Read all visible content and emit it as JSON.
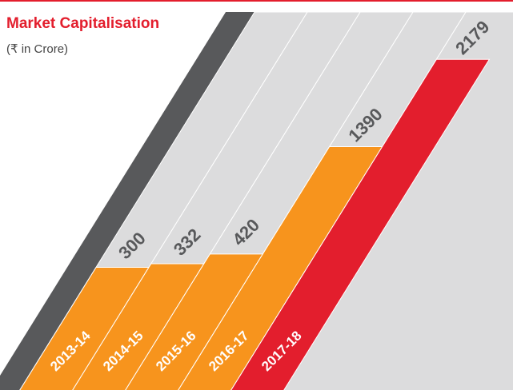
{
  "chart_data": {
    "type": "slanted-bar",
    "title": "Market Capitalisation",
    "subtitle": "(₹ in Crore)",
    "categories": [
      "2013-14",
      "2014-15",
      "2015-16",
      "2016-17",
      "2017-18"
    ],
    "values": [
      300,
      332,
      420,
      1390,
      2179
    ],
    "colors": [
      "#f7941d",
      "#f7941d",
      "#f7941d",
      "#f7941d",
      "#e31e2d"
    ]
  }
}
